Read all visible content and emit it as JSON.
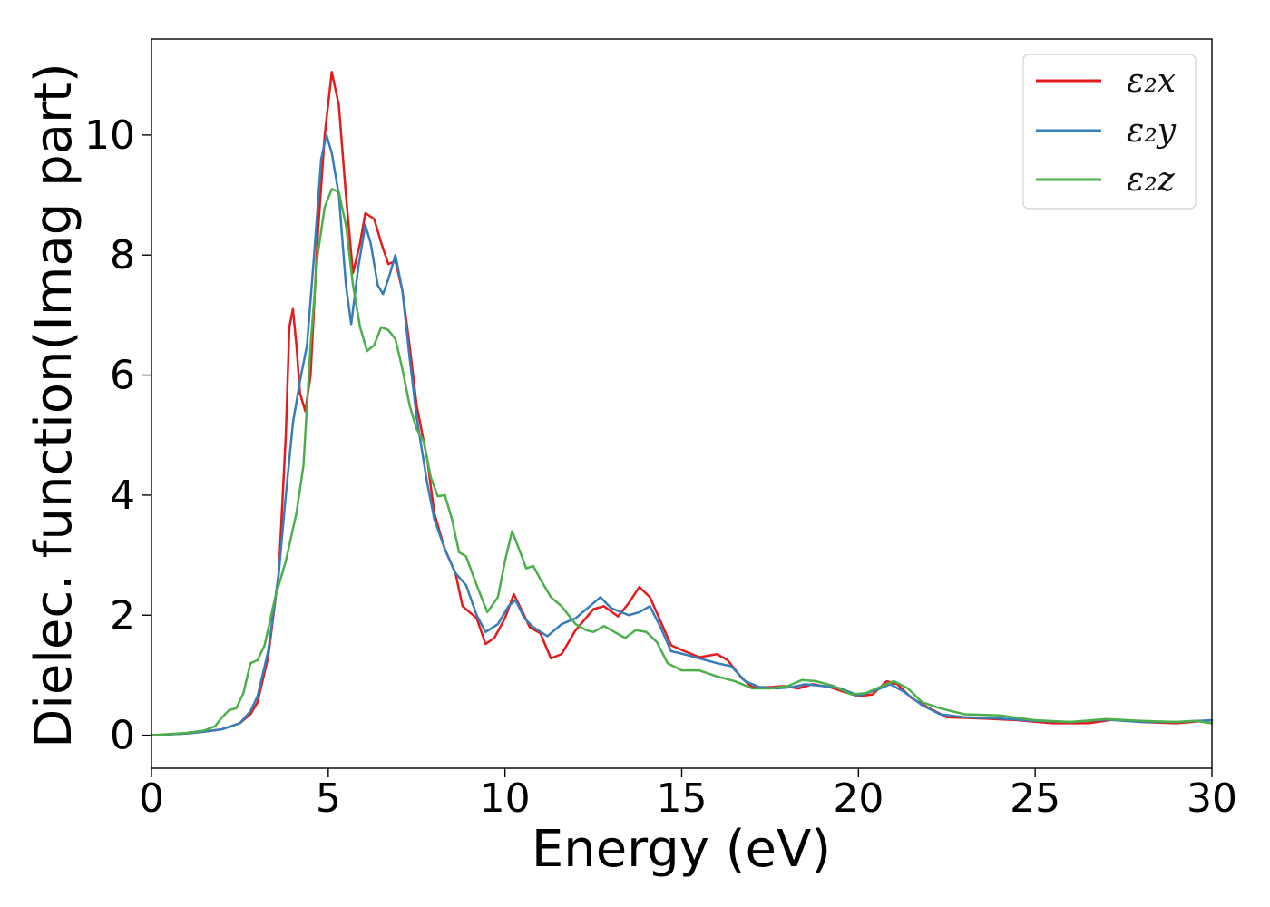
{
  "chart_data": {
    "type": "line",
    "title": "",
    "xlabel": "Energy (eV)",
    "ylabel": "Dielec. function(Imag part)",
    "xlim": [
      0,
      30
    ],
    "ylim": [
      -0.55,
      11.6
    ],
    "xticks": [
      0,
      5,
      10,
      15,
      20,
      25,
      30
    ],
    "yticks": [
      0,
      2,
      4,
      6,
      8,
      10
    ],
    "grid": false,
    "legend_position": "top-right",
    "series": [
      {
        "name": "ε₂x",
        "color": "#e41a1c",
        "points": [
          [
            0,
            0
          ],
          [
            1,
            0.03
          ],
          [
            1.5,
            0.06
          ],
          [
            2,
            0.1
          ],
          [
            2.5,
            0.2
          ],
          [
            2.8,
            0.35
          ],
          [
            3,
            0.55
          ],
          [
            3.3,
            1.3
          ],
          [
            3.6,
            2.7
          ],
          [
            3.8,
            5.0
          ],
          [
            3.9,
            6.8
          ],
          [
            4.0,
            7.1
          ],
          [
            4.1,
            6.5
          ],
          [
            4.2,
            5.7
          ],
          [
            4.35,
            5.4
          ],
          [
            4.5,
            6.0
          ],
          [
            4.7,
            8.3
          ],
          [
            4.9,
            10.0
          ],
          [
            5.1,
            11.05
          ],
          [
            5.3,
            10.5
          ],
          [
            5.5,
            9.0
          ],
          [
            5.7,
            7.7
          ],
          [
            5.9,
            8.2
          ],
          [
            6.05,
            8.7
          ],
          [
            6.3,
            8.6
          ],
          [
            6.5,
            8.2
          ],
          [
            6.7,
            7.85
          ],
          [
            6.9,
            7.9
          ],
          [
            7.1,
            7.4
          ],
          [
            7.3,
            6.5
          ],
          [
            7.5,
            5.5
          ],
          [
            7.8,
            4.6
          ],
          [
            8.0,
            3.7
          ],
          [
            8.3,
            3.1
          ],
          [
            8.6,
            2.7
          ],
          [
            8.8,
            2.15
          ],
          [
            9.0,
            2.05
          ],
          [
            9.2,
            1.95
          ],
          [
            9.45,
            1.52
          ],
          [
            9.7,
            1.62
          ],
          [
            10.0,
            1.95
          ],
          [
            10.25,
            2.35
          ],
          [
            10.5,
            2.05
          ],
          [
            10.7,
            1.8
          ],
          [
            11.0,
            1.7
          ],
          [
            11.3,
            1.28
          ],
          [
            11.6,
            1.35
          ],
          [
            12.0,
            1.75
          ],
          [
            12.5,
            2.1
          ],
          [
            12.8,
            2.15
          ],
          [
            13.2,
            1.98
          ],
          [
            13.5,
            2.2
          ],
          [
            13.8,
            2.47
          ],
          [
            14.1,
            2.3
          ],
          [
            14.4,
            1.9
          ],
          [
            14.7,
            1.5
          ],
          [
            15.0,
            1.42
          ],
          [
            15.5,
            1.3
          ],
          [
            16.0,
            1.35
          ],
          [
            16.3,
            1.25
          ],
          [
            16.7,
            0.95
          ],
          [
            17.0,
            0.8
          ],
          [
            17.5,
            0.8
          ],
          [
            17.9,
            0.82
          ],
          [
            18.3,
            0.78
          ],
          [
            18.7,
            0.85
          ],
          [
            19.2,
            0.8
          ],
          [
            19.6,
            0.72
          ],
          [
            20.0,
            0.65
          ],
          [
            20.4,
            0.68
          ],
          [
            20.8,
            0.9
          ],
          [
            21.1,
            0.85
          ],
          [
            21.5,
            0.62
          ],
          [
            22.0,
            0.45
          ],
          [
            22.5,
            0.3
          ],
          [
            23.5,
            0.28
          ],
          [
            24.5,
            0.25
          ],
          [
            25.5,
            0.2
          ],
          [
            26.5,
            0.2
          ],
          [
            27.2,
            0.26
          ],
          [
            28.0,
            0.22
          ],
          [
            29.0,
            0.2
          ],
          [
            30.0,
            0.25
          ]
        ]
      },
      {
        "name": "ε₂y",
        "color": "#377eb8",
        "points": [
          [
            0,
            0
          ],
          [
            1,
            0.03
          ],
          [
            1.5,
            0.06
          ],
          [
            2,
            0.1
          ],
          [
            2.5,
            0.2
          ],
          [
            2.8,
            0.4
          ],
          [
            3,
            0.65
          ],
          [
            3.3,
            1.4
          ],
          [
            3.6,
            2.7
          ],
          [
            3.8,
            4.0
          ],
          [
            4.0,
            5.2
          ],
          [
            4.2,
            5.9
          ],
          [
            4.4,
            6.5
          ],
          [
            4.6,
            8.0
          ],
          [
            4.8,
            9.6
          ],
          [
            4.95,
            10.0
          ],
          [
            5.1,
            9.7
          ],
          [
            5.3,
            9.0
          ],
          [
            5.5,
            7.5
          ],
          [
            5.65,
            6.85
          ],
          [
            5.85,
            7.8
          ],
          [
            6.05,
            8.5
          ],
          [
            6.2,
            8.2
          ],
          [
            6.4,
            7.5
          ],
          [
            6.55,
            7.35
          ],
          [
            6.7,
            7.6
          ],
          [
            6.9,
            8.0
          ],
          [
            7.1,
            7.4
          ],
          [
            7.3,
            6.3
          ],
          [
            7.5,
            5.3
          ],
          [
            7.8,
            4.2
          ],
          [
            8.0,
            3.6
          ],
          [
            8.3,
            3.1
          ],
          [
            8.6,
            2.7
          ],
          [
            8.9,
            2.5
          ],
          [
            9.2,
            2.0
          ],
          [
            9.45,
            1.72
          ],
          [
            9.8,
            1.85
          ],
          [
            10.1,
            2.15
          ],
          [
            10.3,
            2.25
          ],
          [
            10.55,
            1.95
          ],
          [
            10.8,
            1.8
          ],
          [
            11.2,
            1.65
          ],
          [
            11.6,
            1.85
          ],
          [
            12.0,
            1.95
          ],
          [
            12.4,
            2.15
          ],
          [
            12.7,
            2.3
          ],
          [
            13.0,
            2.12
          ],
          [
            13.5,
            2.0
          ],
          [
            13.8,
            2.05
          ],
          [
            14.1,
            2.15
          ],
          [
            14.4,
            1.8
          ],
          [
            14.7,
            1.4
          ],
          [
            15.0,
            1.36
          ],
          [
            15.5,
            1.28
          ],
          [
            16.0,
            1.2
          ],
          [
            16.4,
            1.15
          ],
          [
            16.8,
            0.9
          ],
          [
            17.2,
            0.8
          ],
          [
            17.7,
            0.78
          ],
          [
            18.1,
            0.8
          ],
          [
            18.5,
            0.85
          ],
          [
            19.0,
            0.82
          ],
          [
            19.5,
            0.78
          ],
          [
            20.0,
            0.66
          ],
          [
            20.5,
            0.75
          ],
          [
            20.9,
            0.85
          ],
          [
            21.3,
            0.72
          ],
          [
            21.8,
            0.5
          ],
          [
            22.3,
            0.35
          ],
          [
            23.0,
            0.3
          ],
          [
            24.0,
            0.28
          ],
          [
            25.0,
            0.24
          ],
          [
            26.0,
            0.22
          ],
          [
            27.0,
            0.26
          ],
          [
            28.0,
            0.22
          ],
          [
            29.0,
            0.22
          ],
          [
            30.0,
            0.25
          ]
        ]
      },
      {
        "name": "ε₂z",
        "color": "#4daf4a",
        "points": [
          [
            0,
            0
          ],
          [
            1,
            0.04
          ],
          [
            1.5,
            0.08
          ],
          [
            1.8,
            0.15
          ],
          [
            2.0,
            0.3
          ],
          [
            2.2,
            0.42
          ],
          [
            2.4,
            0.45
          ],
          [
            2.6,
            0.7
          ],
          [
            2.8,
            1.2
          ],
          [
            3.0,
            1.25
          ],
          [
            3.2,
            1.5
          ],
          [
            3.5,
            2.3
          ],
          [
            3.8,
            2.9
          ],
          [
            4.1,
            3.7
          ],
          [
            4.3,
            4.5
          ],
          [
            4.5,
            6.5
          ],
          [
            4.7,
            8.0
          ],
          [
            4.9,
            8.8
          ],
          [
            5.1,
            9.1
          ],
          [
            5.3,
            9.05
          ],
          [
            5.5,
            8.5
          ],
          [
            5.7,
            7.5
          ],
          [
            5.9,
            6.8
          ],
          [
            6.1,
            6.4
          ],
          [
            6.3,
            6.5
          ],
          [
            6.5,
            6.8
          ],
          [
            6.7,
            6.75
          ],
          [
            6.9,
            6.6
          ],
          [
            7.1,
            6.1
          ],
          [
            7.3,
            5.5
          ],
          [
            7.5,
            5.1
          ],
          [
            7.7,
            4.9
          ],
          [
            7.9,
            4.3
          ],
          [
            8.1,
            3.98
          ],
          [
            8.3,
            4.0
          ],
          [
            8.5,
            3.6
          ],
          [
            8.7,
            3.05
          ],
          [
            8.9,
            2.98
          ],
          [
            9.2,
            2.5
          ],
          [
            9.5,
            2.05
          ],
          [
            9.8,
            2.3
          ],
          [
            10.0,
            2.9
          ],
          [
            10.2,
            3.4
          ],
          [
            10.4,
            3.1
          ],
          [
            10.6,
            2.78
          ],
          [
            10.8,
            2.82
          ],
          [
            11.0,
            2.6
          ],
          [
            11.3,
            2.3
          ],
          [
            11.6,
            2.15
          ],
          [
            12.0,
            1.85
          ],
          [
            12.3,
            1.75
          ],
          [
            12.5,
            1.72
          ],
          [
            12.8,
            1.82
          ],
          [
            13.1,
            1.72
          ],
          [
            13.4,
            1.62
          ],
          [
            13.7,
            1.75
          ],
          [
            14.0,
            1.72
          ],
          [
            14.3,
            1.55
          ],
          [
            14.6,
            1.2
          ],
          [
            15.0,
            1.08
          ],
          [
            15.5,
            1.08
          ],
          [
            16.0,
            0.98
          ],
          [
            16.5,
            0.9
          ],
          [
            17.0,
            0.78
          ],
          [
            17.5,
            0.78
          ],
          [
            18.0,
            0.82
          ],
          [
            18.4,
            0.92
          ],
          [
            18.8,
            0.9
          ],
          [
            19.3,
            0.82
          ],
          [
            19.8,
            0.68
          ],
          [
            20.2,
            0.7
          ],
          [
            20.6,
            0.8
          ],
          [
            21.0,
            0.9
          ],
          [
            21.4,
            0.78
          ],
          [
            21.8,
            0.55
          ],
          [
            22.3,
            0.45
          ],
          [
            23.0,
            0.35
          ],
          [
            24.0,
            0.33
          ],
          [
            25.0,
            0.25
          ],
          [
            26.0,
            0.22
          ],
          [
            27.0,
            0.27
          ],
          [
            28.0,
            0.24
          ],
          [
            29.0,
            0.22
          ],
          [
            29.5,
            0.24
          ],
          [
            30.0,
            0.2
          ]
        ]
      }
    ]
  }
}
